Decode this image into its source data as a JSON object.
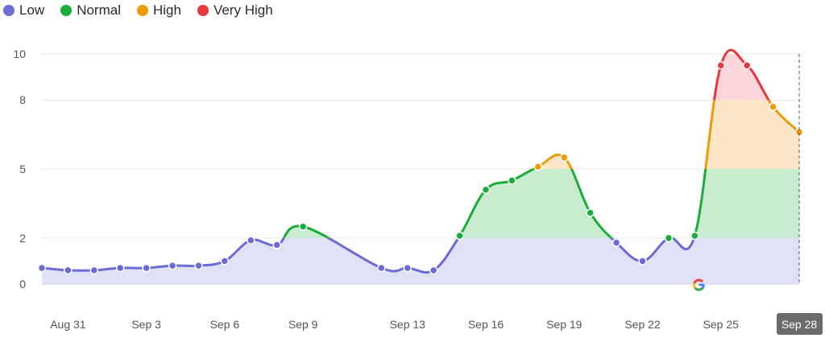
{
  "legend": [
    {
      "label": "Low",
      "color": "#6b6bd6"
    },
    {
      "label": "Normal",
      "color": "#1aae39"
    },
    {
      "label": "High",
      "color": "#ef9a0a"
    },
    {
      "label": "Very High",
      "color": "#e8363d"
    }
  ],
  "chart_data": {
    "type": "area",
    "title": "",
    "xlabel": "",
    "ylabel": "",
    "ylim": [
      0,
      10
    ],
    "y_ticks": [
      0,
      2,
      5,
      8,
      10
    ],
    "x_tick_labels": [
      {
        "day": 1,
        "label": "Aug 31"
      },
      {
        "day": 4,
        "label": "Sep 3"
      },
      {
        "day": 7,
        "label": "Sep 6"
      },
      {
        "day": 10,
        "label": "Sep 9"
      },
      {
        "day": 14,
        "label": "Sep 13"
      },
      {
        "day": 17,
        "label": "Sep 16"
      },
      {
        "day": 20,
        "label": "Sep 19"
      },
      {
        "day": 23,
        "label": "Sep 22"
      },
      {
        "day": 26,
        "label": "Sep 25"
      },
      {
        "day": 29,
        "label": "Sep 28",
        "highlight": true
      }
    ],
    "thresholds": [
      {
        "name": "Low",
        "min": 0,
        "max": 2,
        "color": "#6b6bd6",
        "fill": "#e0e0f7"
      },
      {
        "name": "Normal",
        "min": 2,
        "max": 5,
        "color": "#1aae39",
        "fill": "#c9ecd1"
      },
      {
        "name": "High",
        "min": 5,
        "max": 8,
        "color": "#ef9a0a",
        "fill": "#fbe6c8"
      },
      {
        "name": "Very High",
        "min": 8,
        "max": 10,
        "color": "#e8363d",
        "fill": "#fcd6da"
      }
    ],
    "series": [
      {
        "x": [
          0,
          1,
          2,
          3,
          4,
          5,
          6,
          7,
          8,
          9,
          10,
          13,
          14,
          15,
          16,
          17,
          18,
          19,
          20,
          21,
          22,
          23,
          24,
          25,
          26,
          27,
          28,
          29
        ],
        "y": [
          0.7,
          0.6,
          0.6,
          0.7,
          0.7,
          0.8,
          0.8,
          1.0,
          1.9,
          1.7,
          2.5,
          0.7,
          0.7,
          0.6,
          2.1,
          4.1,
          4.5,
          5.1,
          5.5,
          3.1,
          1.8,
          1.0,
          2.0,
          2.1,
          9.5,
          9.5,
          7.7,
          6.6
        ]
      }
    ],
    "annotations": [
      {
        "type": "google-update-marker",
        "day": 25
      }
    ]
  }
}
